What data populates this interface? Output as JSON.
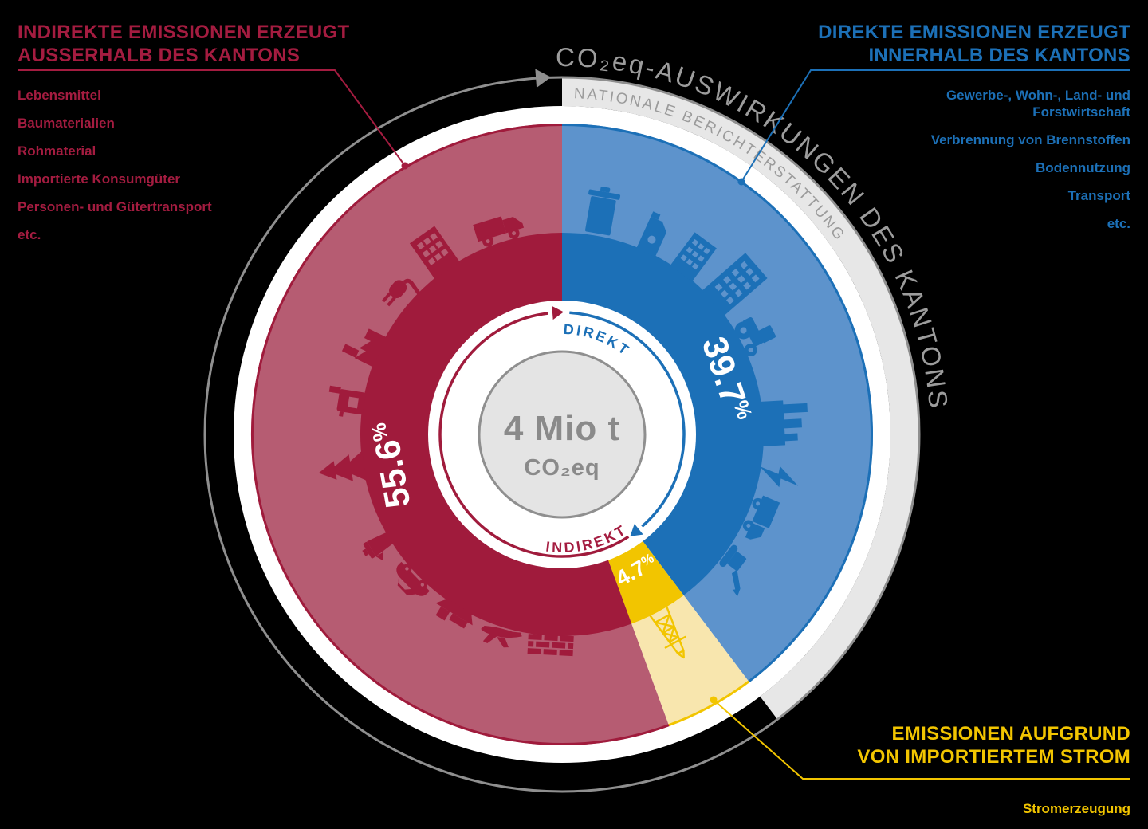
{
  "colors": {
    "crimson": "#A41C40",
    "crimson_light": "#B65C72",
    "blue": "#1C70B7",
    "blue_light": "#5D93CC",
    "yellow": "#F2C500",
    "yellow_light": "#F8E6AE",
    "gray_band": "#E7E7E7",
    "gray_line": "#8F8F8F",
    "gray_text": "#9B9B9B",
    "center_fill": "#E4E4E4",
    "center_text": "#8A8A8A",
    "background": "#000000",
    "white": "#FFFFFF"
  },
  "header_arc": {
    "title": "CO₂eq-AUSWIRKUNGEN DES KANTONS",
    "band_label": "NATIONALE BERICHTERSTATTUNG"
  },
  "center": {
    "value": "4 Mio t",
    "unit": "CO₂eq",
    "direct_label": "DIREKT",
    "indirect_label": "INDIREKT"
  },
  "percent_sign": "%",
  "chart_data": {
    "type": "pie",
    "title": "CO₂eq-AUSWIRKUNGEN DES KANTONS",
    "subtitle_band": "NATIONALE BERICHTERSTATTUNG",
    "center_total": {
      "value": "4 Mio t",
      "unit": "CO₂eq"
    },
    "start_angle_deg": 0,
    "direction": "clockwise",
    "slices": [
      {
        "key": "direct",
        "label": "39.7",
        "value_pct": 39.7,
        "name": "Direkte Emissionen erzeugt innerhalb des Kantons",
        "color": "#1C70B7",
        "light_color": "#5D93CC",
        "flow_label": "DIREKT"
      },
      {
        "key": "imported",
        "label": "4.7",
        "value_pct": 4.7,
        "name": "Emissionen aufgrund von importiertem Strom",
        "color": "#F2C500",
        "light_color": "#F8E6AE"
      },
      {
        "key": "indirect",
        "label": "55.6",
        "value_pct": 55.6,
        "name": "Indirekte Emissionen erzeugt ausserhalb des Kantons",
        "color": "#A01B3C",
        "light_color": "#B65C72",
        "flow_label": "INDIREKT"
      }
    ],
    "icons": {
      "direct": [
        "trash-bin",
        "oil-canister",
        "office-building",
        "apartment-tower",
        "tractor",
        "factory",
        "lightning-bolt",
        "truck",
        "excavator"
      ],
      "imported": [
        "power-pylon"
      ],
      "indirect": [
        "brick-wall",
        "airplane",
        "cargo-ship",
        "car",
        "coffee-pot",
        "fir-tree",
        "boiler",
        "factory",
        "power-plug",
        "apartment-building",
        "delivery-truck"
      ]
    }
  },
  "legend_left": {
    "color": "#A41C40",
    "title_lines": [
      "INDIREKTE EMISSIONEN ERZEUGT",
      "AUSSERHALB DES KANTONS"
    ],
    "items": [
      "Lebensmittel",
      "Baumaterialien",
      "Rohmaterial",
      "Importierte Konsumgüter",
      "Personen- und Gütertransport",
      "etc."
    ]
  },
  "legend_right": {
    "color": "#1C70B7",
    "title_lines": [
      "DIREKTE EMISSIONEN ERZEUGT",
      "INNERHALB DES KANTONS"
    ],
    "items": [
      "Gewerbe-, Wohn-, Land- und Forstwirtschaft",
      "Verbrennung von Brennstoffen",
      "Bodennutzung",
      "Transport",
      "etc."
    ]
  },
  "legend_bottom": {
    "color": "#F2C500",
    "title_lines": [
      "EMISSIONEN AUFGRUND",
      "VON IMPORTIERTEM STROM"
    ],
    "items": [
      "Stromerzeugung"
    ]
  }
}
